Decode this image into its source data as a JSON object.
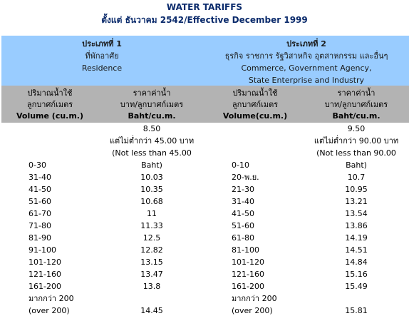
{
  "header": {
    "title": "WATER TARIFFS",
    "subtitle": "ตั้งแต่ ธันวาคม 2542/Effective December 1999"
  },
  "types": [
    {
      "title": "ประเภทที่ 1",
      "lines": [
        "ที่พักอาศัย",
        "Residence"
      ]
    },
    {
      "title": "ประเภทที่ 2",
      "lines": [
        "ธุรกิจ ราชการ รัฐวิสาหกิจ อุตสาหกรรม และอื่นๆ",
        "Commerce, Government Agency,",
        "State Enterprise and Industry"
      ]
    }
  ],
  "table": {
    "columns": [
      [
        "ปริมาณน้ำใช้",
        "ลูกบาศก์เมตร",
        "Volume (cu.m.)"
      ],
      [
        "ราคาค่าน้ำ",
        "บาท/ลูกบาศก์เมตร",
        "Baht/cu.m."
      ],
      [
        "ปริมาณน้ำใช้",
        "ลูกบาศก์เมตร",
        "Volume(cu.m.)"
      ],
      [
        "ราคาค่าน้ำ",
        "บาท/ลูกบาศก์เมตร",
        "Baht/cu.m."
      ]
    ],
    "rows": [
      [
        null,
        "8.50",
        null,
        "9.50"
      ],
      [
        null,
        "แต่ไม่ต่ำกว่า 45.00 บาท",
        null,
        "แต่ไม่ต่ำกว่า 90.00 บาท"
      ],
      [
        null,
        "(Not less than 45.00",
        null,
        "(Not less than 90.00"
      ],
      [
        "0-30",
        "Baht)",
        "0-10",
        "Baht)"
      ],
      [
        "31-40",
        "10.03",
        "20-พ.ย.",
        "10.7"
      ],
      [
        "41-50",
        "10.35",
        "21-30",
        "10.95"
      ],
      [
        "51-60",
        "10.68",
        "31-40",
        "13.21"
      ],
      [
        "61-70",
        "11",
        "41-50",
        "13.54"
      ],
      [
        "71-80",
        "11.33",
        "51-60",
        "13.86"
      ],
      [
        "81-90",
        "12.5",
        "61-80",
        "14.19"
      ],
      [
        "91-100",
        "12.82",
        "81-100",
        "14.51"
      ],
      [
        "101-120",
        "13.15",
        "101-120",
        "14.84"
      ],
      [
        "121-160",
        "13.47",
        "121-160",
        "15.16"
      ],
      [
        "161-200",
        "13.8",
        "161-200",
        "15.49"
      ],
      [
        "มากกว่า 200",
        null,
        "มากกว่า 200",
        null
      ],
      [
        "(over 200)",
        "14.45",
        "(over 200)",
        "15.81"
      ]
    ]
  }
}
